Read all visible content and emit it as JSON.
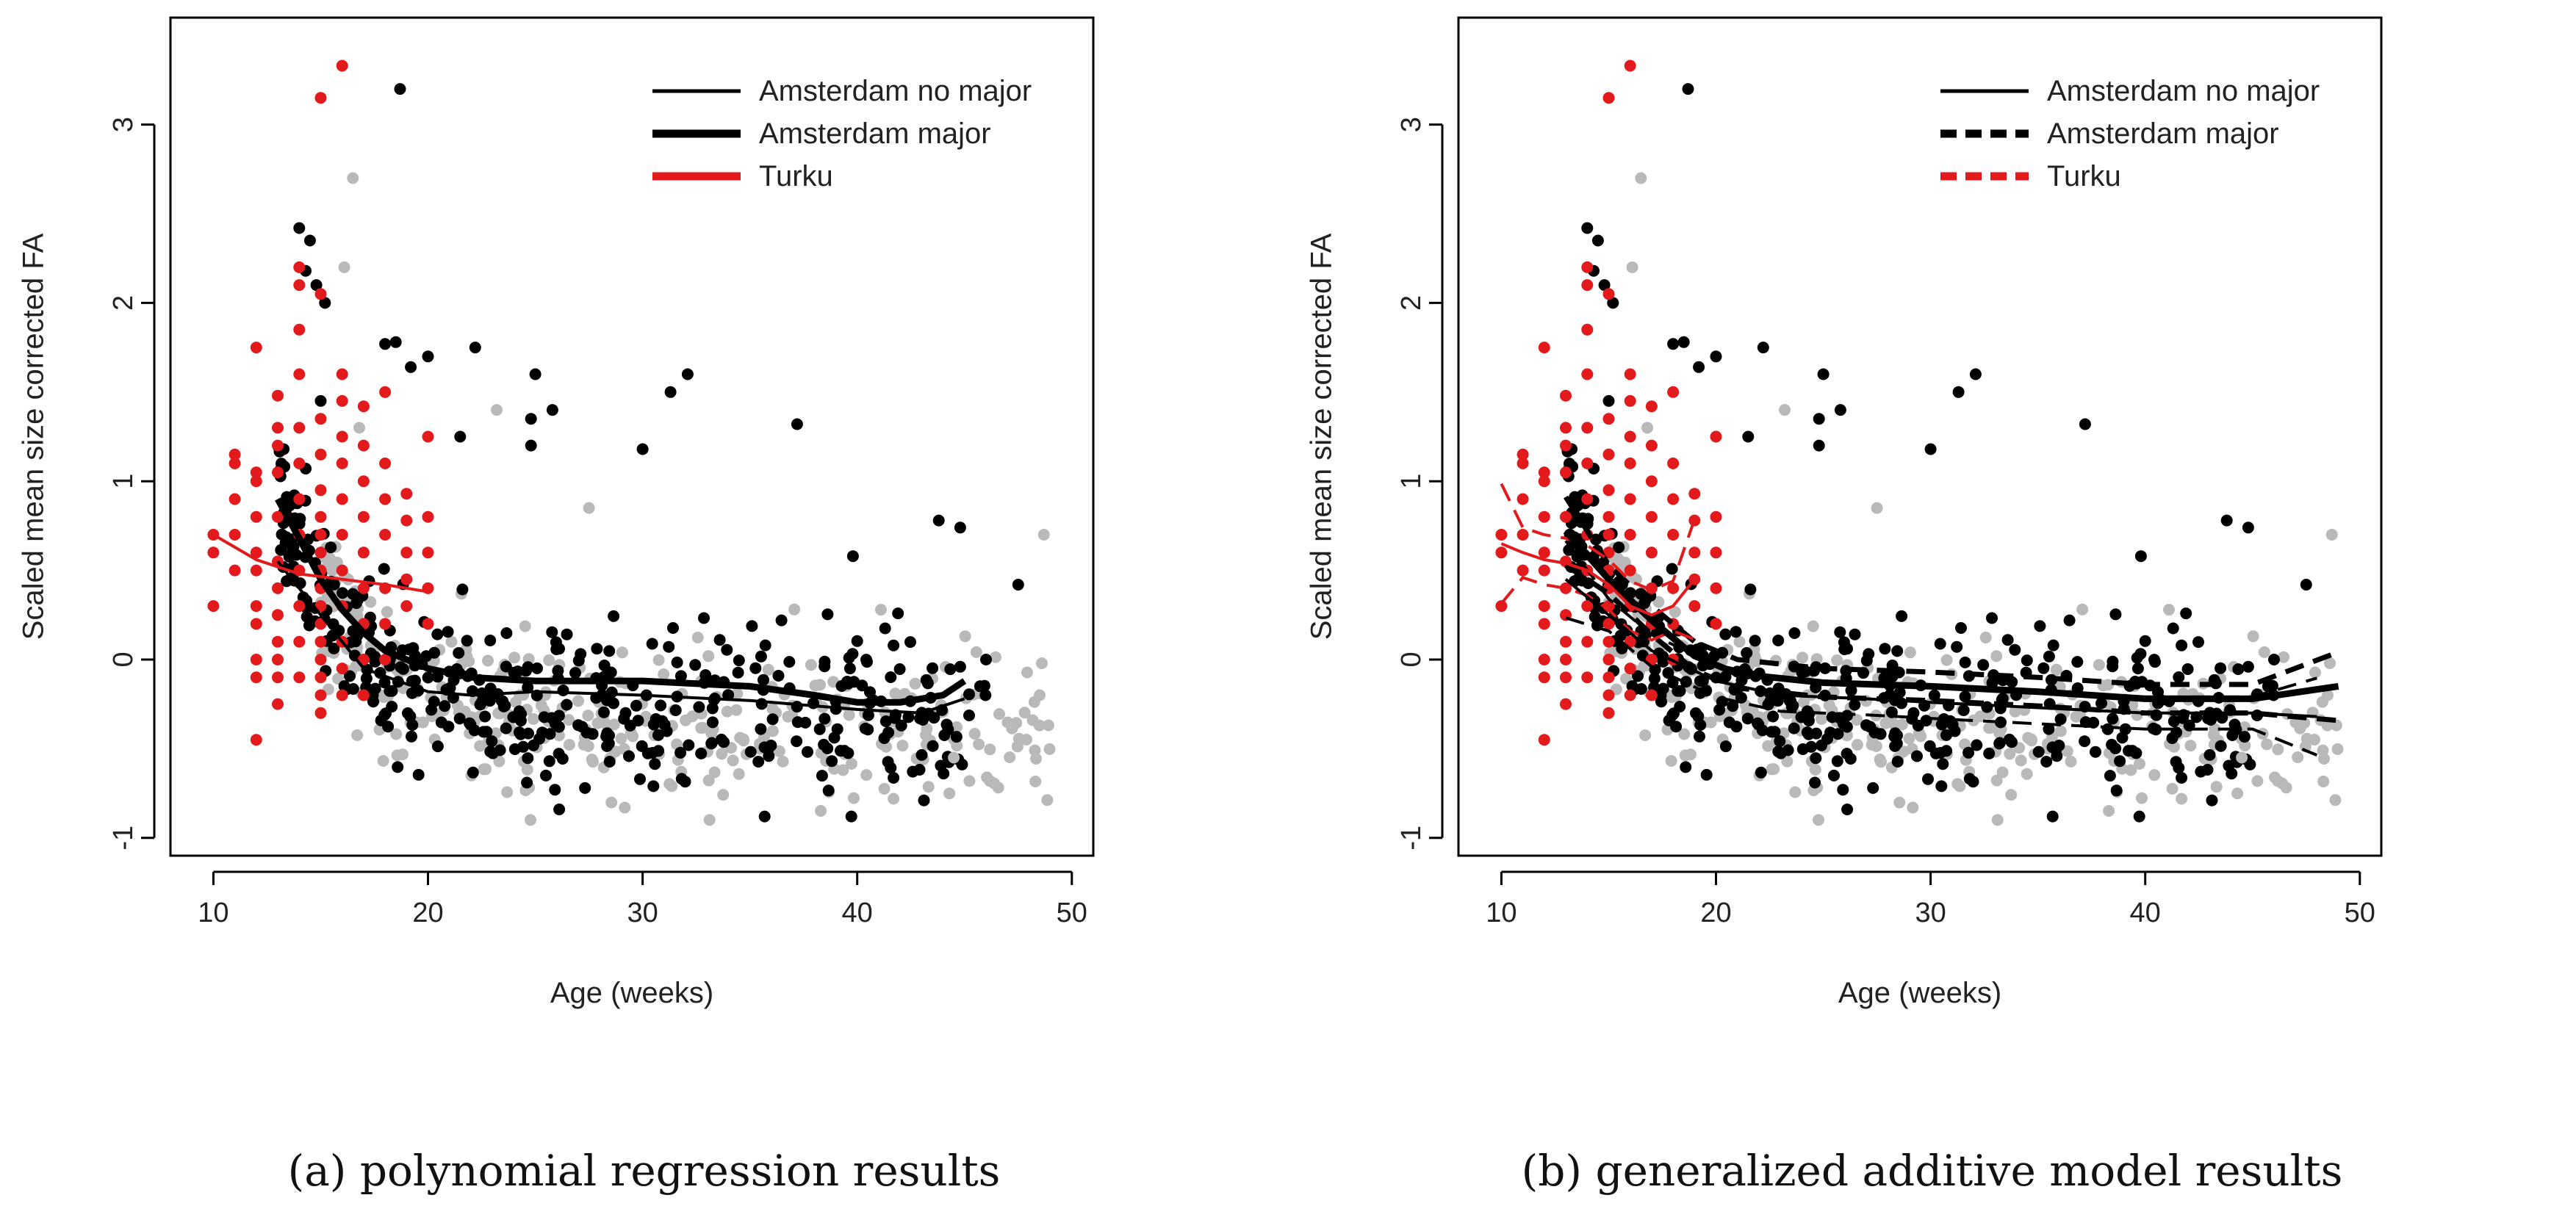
{
  "chart_data": [
    {
      "type": "scatter",
      "panel": "a",
      "caption": "(a) polynomial regression results",
      "xlabel": "Age (weeks)",
      "ylabel": "Scaled mean size corrected FA",
      "xlim": [
        8,
        51
      ],
      "ylim": [
        -1.1,
        3.6
      ],
      "xticks": [
        "10",
        "20",
        "30",
        "40",
        "50"
      ],
      "yticks": [
        "-1",
        "0",
        "1",
        "2",
        "3"
      ],
      "legend_position": "top-right",
      "legend": [
        {
          "label": "Amsterdam no major",
          "color": "#000000",
          "style": "thin"
        },
        {
          "label": "Amsterdam major",
          "color": "#000000",
          "style": "thick"
        },
        {
          "label": "Turku",
          "color": "#e31a1c",
          "style": "thick"
        }
      ],
      "series": [
        {
          "name": "Amsterdam no major",
          "x": [
            13,
            15,
            17,
            20,
            22,
            25,
            30,
            35,
            40,
            43,
            45
          ],
          "y": [
            0.55,
            0.25,
            -0.05,
            -0.18,
            -0.2,
            -0.18,
            -0.2,
            -0.23,
            -0.28,
            -0.3,
            -0.22
          ]
        },
        {
          "name": "Amsterdam major",
          "x": [
            13,
            14,
            15,
            16,
            17,
            18,
            20,
            22,
            25,
            30,
            35,
            38,
            40,
            42,
            44,
            45
          ],
          "y": [
            0.9,
            0.68,
            0.45,
            0.28,
            0.15,
            0.05,
            -0.05,
            -0.1,
            -0.12,
            -0.12,
            -0.15,
            -0.2,
            -0.24,
            -0.24,
            -0.2,
            -0.12
          ]
        },
        {
          "name": "Turku",
          "x": [
            10,
            12,
            14,
            16,
            18,
            20
          ],
          "y": [
            0.7,
            0.56,
            0.48,
            0.45,
            0.42,
            0.38
          ]
        }
      ]
    },
    {
      "type": "scatter",
      "panel": "b",
      "caption": "(b) generalized additive model results",
      "xlabel": "Age (weeks)",
      "ylabel": "Scaled mean size corrected FA",
      "xlim": [
        8,
        51
      ],
      "ylim": [
        -1.1,
        3.6
      ],
      "xticks": [
        "10",
        "20",
        "30",
        "40",
        "50"
      ],
      "yticks": [
        "-1",
        "0",
        "1",
        "2",
        "3"
      ],
      "legend_position": "top-right",
      "legend": [
        {
          "label": "Amsterdam no major",
          "color": "#000000",
          "style": "thin"
        },
        {
          "label": "Amsterdam major",
          "color": "#000000",
          "style": "thick"
        },
        {
          "label": "Turku",
          "color": "#e31a1c",
          "style": "thick"
        }
      ],
      "series": [
        {
          "name": "Amsterdam no major",
          "x": [
            13,
            15,
            17,
            20,
            23,
            27,
            30,
            35,
            40,
            45,
            48
          ],
          "y": [
            0.45,
            0.25,
            0.05,
            -0.12,
            -0.2,
            -0.22,
            -0.24,
            -0.27,
            -0.3,
            -0.3,
            -0.32
          ]
        },
        {
          "name": "Amsterdam major",
          "x": [
            13,
            15,
            17,
            19,
            21,
            25,
            30,
            35,
            40,
            45,
            49
          ],
          "y": [
            0.72,
            0.45,
            0.22,
            0.02,
            -0.08,
            -0.13,
            -0.15,
            -0.18,
            -0.22,
            -0.22,
            -0.15
          ]
        },
        {
          "name": "Turku",
          "x": [
            10,
            11,
            12,
            13,
            14,
            15,
            16,
            17,
            18,
            19
          ],
          "y": [
            0.65,
            0.6,
            0.56,
            0.54,
            0.5,
            0.42,
            0.3,
            0.25,
            0.3,
            0.45
          ]
        }
      ]
    }
  ]
}
